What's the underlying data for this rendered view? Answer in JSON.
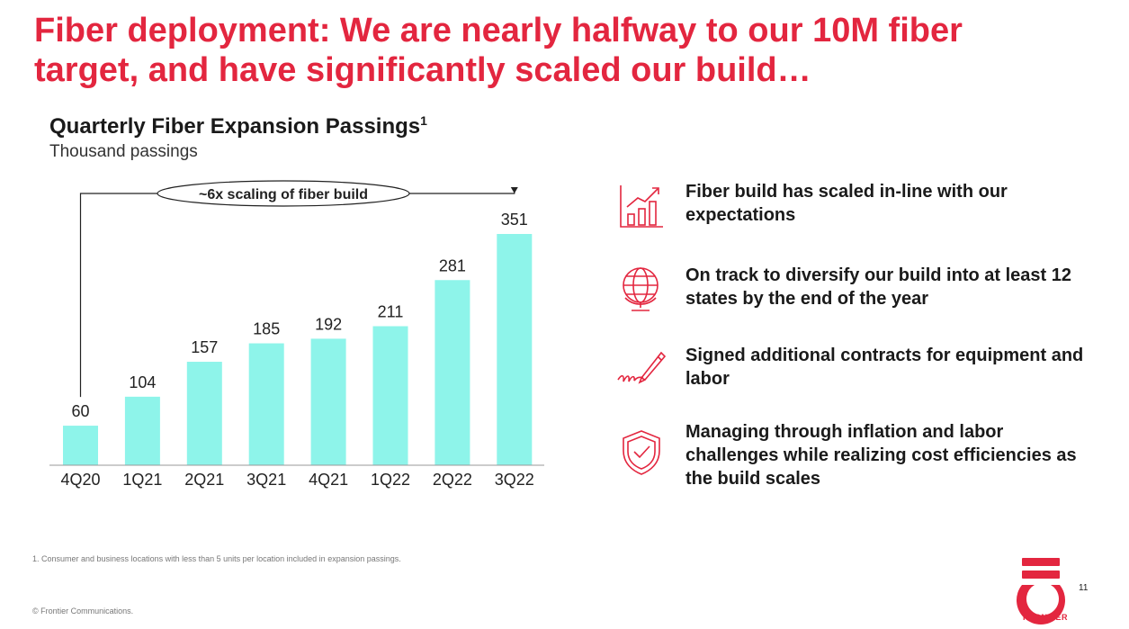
{
  "headline": {
    "bold": "Fiber deployment:",
    "rest": " We are nearly halfway to our 10M fiber target, and have significantly scaled our build…"
  },
  "chart_title": "Quarterly Fiber Expansion Passings",
  "chart_title_sup": "1",
  "chart_subtitle": "Thousand passings",
  "callout": "~6x scaling of fiber build",
  "chart_data": {
    "type": "bar",
    "categories": [
      "4Q20",
      "1Q21",
      "2Q21",
      "3Q21",
      "4Q21",
      "1Q22",
      "2Q22",
      "3Q22"
    ],
    "values": [
      60,
      104,
      157,
      185,
      192,
      211,
      281,
      351
    ],
    "title": "Quarterly Fiber Expansion Passings",
    "ylabel": "Thousand passings",
    "ylim": [
      0,
      351
    ],
    "bar_color": "#8ef4ea",
    "grid": false,
    "data_labels": true,
    "annotation": "~6x scaling of fiber build"
  },
  "bullets": [
    {
      "icon": "growth-chart-icon",
      "text": "Fiber build has scaled in-line with our expectations"
    },
    {
      "icon": "globe-icon",
      "text": "On track to diversify our build into at least 12 states by the end of the year"
    },
    {
      "icon": "signature-pen-icon",
      "text": "Signed additional contracts for equipment and labor"
    },
    {
      "icon": "shield-check-icon",
      "text": "Managing through inflation and labor challenges while realizing cost efficiencies as the build scales"
    }
  ],
  "footnote": "1. Consumer and business locations with less than 5 units per location included in expansion passings.",
  "copyright": "© Frontier Communications.",
  "page_number": "11",
  "brand": "FRONTIER",
  "colors": {
    "accent": "#e3263f",
    "bar": "#8ef4ea",
    "text": "#1a1a1a"
  }
}
